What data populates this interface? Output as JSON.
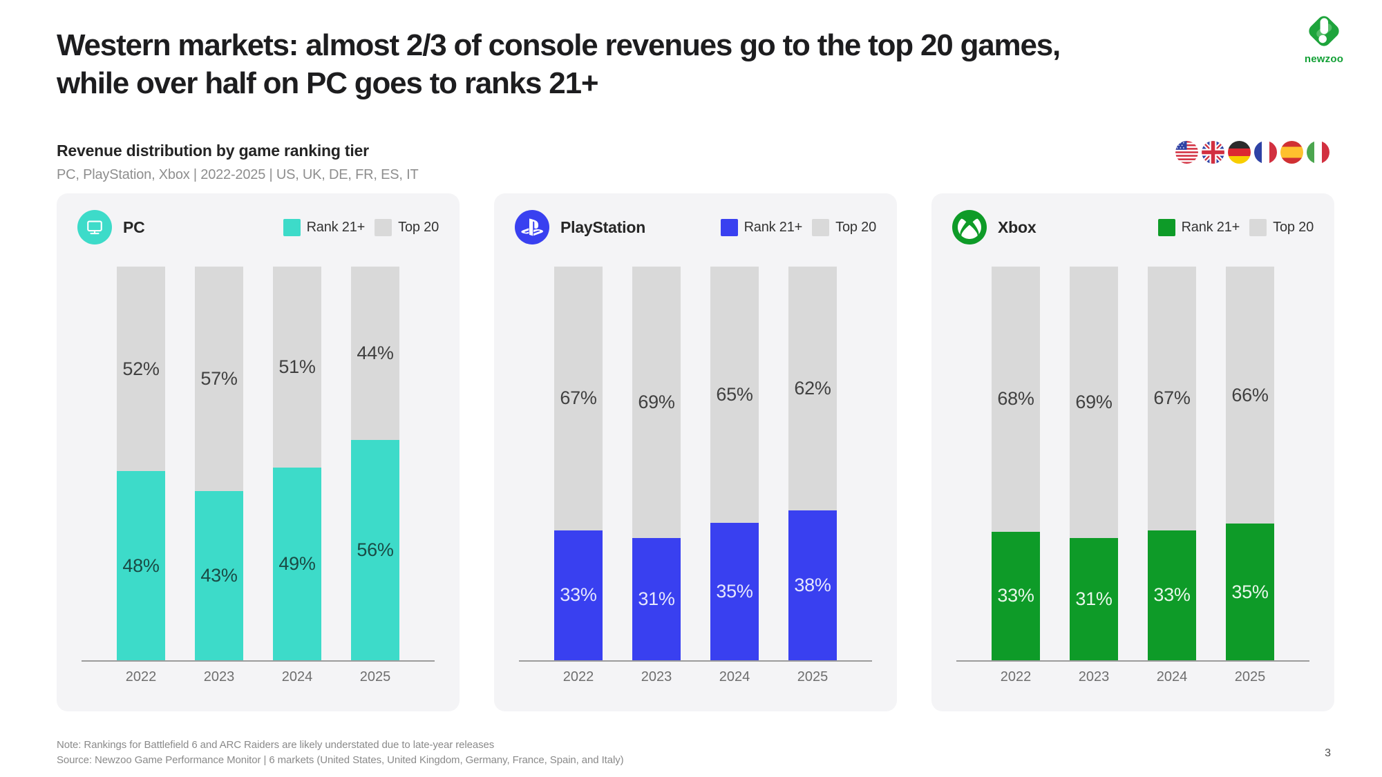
{
  "page": {
    "title": "Western markets: almost 2/3 of console revenues go to the top 20 games,\nwhile over half on PC goes to ranks 21+",
    "subtitle": "Revenue distribution by game ranking tier",
    "scope_line": "PC, PlayStation, Xbox | 2022-2025 | US, UK, DE, FR, ES, IT",
    "note": "Note: Rankings for Battlefield 6 and ARC Raiders are likely understated due to late-year releases",
    "source": "Source: Newzoo Game Performance Monitor | 6 markets (United States, United Kingdom, Germany, France, Spain, and Italy)",
    "page_number": "3"
  },
  "brand": {
    "logo_text": "newzoo",
    "logo_green": "#1EA43C"
  },
  "flags": [
    "United States",
    "United Kingdom",
    "Germany",
    "France",
    "Spain",
    "Italy"
  ],
  "chart_data": [
    {
      "type": "bar",
      "stacked": true,
      "platform": "PC",
      "icon": "pc-monitor-icon",
      "accent": "#3DDBC9",
      "accent_label_color": "#1A4B45",
      "gray": "#D9D9D9",
      "gray_label_color": "#404040",
      "unit": "%",
      "categories": [
        "2022",
        "2023",
        "2024",
        "2025"
      ],
      "series": [
        {
          "name": "Rank 21+",
          "values": [
            48,
            43,
            49,
            56
          ]
        },
        {
          "name": "Top 20",
          "values": [
            52,
            57,
            51,
            44
          ]
        }
      ],
      "ylim": [
        0,
        100
      ],
      "legend_position": "top-right",
      "grid": false
    },
    {
      "type": "bar",
      "stacked": true,
      "platform": "PlayStation",
      "icon": "playstation-icon",
      "accent": "#3940F0",
      "accent_label_color": "#E6E7FD",
      "gray": "#D9D9D9",
      "gray_label_color": "#404040",
      "unit": "%",
      "categories": [
        "2022",
        "2023",
        "2024",
        "2025"
      ],
      "series": [
        {
          "name": "Rank 21+",
          "values": [
            33,
            31,
            35,
            38
          ]
        },
        {
          "name": "Top 20",
          "values": [
            67,
            69,
            65,
            62
          ]
        }
      ],
      "ylim": [
        0,
        100
      ],
      "legend_position": "top-right",
      "grid": false
    },
    {
      "type": "bar",
      "stacked": true,
      "platform": "Xbox",
      "icon": "xbox-icon",
      "accent": "#0E9B28",
      "accent_label_color": "#E9F7EB",
      "gray": "#D9D9D9",
      "gray_label_color": "#404040",
      "unit": "%",
      "categories": [
        "2022",
        "2023",
        "2024",
        "2025"
      ],
      "series": [
        {
          "name": "Rank 21+",
          "values": [
            33,
            31,
            33,
            35
          ]
        },
        {
          "name": "Top 20",
          "values": [
            68,
            69,
            67,
            66
          ]
        }
      ],
      "ylim": [
        0,
        100
      ],
      "legend_position": "top-right",
      "grid": false
    }
  ]
}
